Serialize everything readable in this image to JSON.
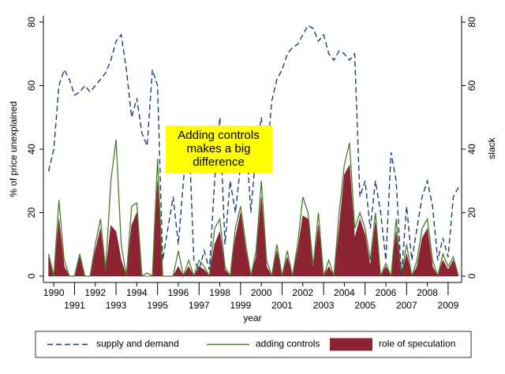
{
  "chart_data": {
    "type": "line",
    "xlabel": "year",
    "ylabel": "% of price unexplained",
    "y2label": "slack",
    "annotation": [
      "Adding controls",
      "makes a big",
      "difference"
    ],
    "x": [
      1989.75,
      1990.0,
      1990.25,
      1990.5,
      1990.75,
      1991.0,
      1991.25,
      1991.5,
      1991.75,
      1992.0,
      1992.25,
      1992.5,
      1992.75,
      1993.0,
      1993.25,
      1993.5,
      1993.75,
      1994.0,
      1994.25,
      1994.5,
      1994.75,
      1995.0,
      1995.25,
      1995.5,
      1995.75,
      1996.0,
      1996.25,
      1996.5,
      1996.75,
      1997.0,
      1997.25,
      1997.5,
      1997.75,
      1998.0,
      1998.25,
      1998.5,
      1998.75,
      1999.0,
      1999.25,
      1999.5,
      1999.75,
      2000.0,
      2000.25,
      2000.5,
      2000.75,
      2001.0,
      2001.25,
      2001.5,
      2001.75,
      2002.0,
      2002.25,
      2002.5,
      2002.75,
      2003.0,
      2003.25,
      2003.5,
      2003.75,
      2004.0,
      2004.25,
      2004.5,
      2004.75,
      2005.0,
      2005.25,
      2005.5,
      2005.75,
      2006.0,
      2006.25,
      2006.5,
      2006.75,
      2007.0,
      2007.25,
      2007.5,
      2007.75,
      2008.0,
      2008.25,
      2008.5,
      2008.75,
      2009.0,
      2009.25,
      2009.5
    ],
    "series": [
      {
        "name": "supply and demand",
        "color": "#1f3f73",
        "style": "dashed",
        "values": [
          33,
          40,
          60,
          65,
          62,
          57,
          58,
          60,
          58,
          60,
          62,
          64,
          68,
          74,
          76,
          65,
          50,
          56,
          45,
          41,
          65,
          60,
          5,
          15,
          25,
          10,
          30,
          47,
          5,
          2,
          8,
          2,
          30,
          50,
          10,
          30,
          20,
          35,
          45,
          20,
          40,
          50,
          35,
          55,
          62,
          65,
          70,
          72,
          73,
          76,
          79,
          78,
          74,
          76,
          70,
          68,
          71,
          70,
          68,
          70,
          25,
          30,
          15,
          30,
          20,
          5,
          39,
          30,
          0,
          22,
          5,
          15,
          25,
          30,
          22,
          5,
          12,
          6,
          25,
          28
        ]
      },
      {
        "name": "adding controls",
        "color": "#4d7a2e",
        "style": "solid",
        "values": [
          7,
          0,
          24,
          5,
          0,
          0,
          7,
          0,
          0,
          10,
          18,
          2,
          30,
          43,
          10,
          0,
          22,
          23,
          0,
          1,
          0,
          37,
          0,
          0,
          0,
          8,
          0,
          5,
          0,
          5,
          3,
          0,
          15,
          18,
          3,
          0,
          15,
          22,
          10,
          0,
          8,
          30,
          5,
          0,
          10,
          0,
          8,
          0,
          10,
          25,
          20,
          3,
          20,
          0,
          5,
          0,
          20,
          35,
          42,
          15,
          20,
          15,
          5,
          20,
          0,
          4,
          0,
          18,
          0,
          10,
          0,
          5,
          15,
          18,
          5,
          0,
          7,
          3,
          6,
          0
        ]
      },
      {
        "name": "role of speculation",
        "color": "#8e2334",
        "style": "area",
        "values": [
          7,
          0,
          18,
          3,
          0,
          0,
          6,
          0,
          0,
          8,
          15,
          1,
          16,
          14,
          5,
          0,
          16,
          20,
          0,
          0,
          0,
          30,
          0,
          0,
          0,
          3,
          0,
          3,
          0,
          3,
          2,
          0,
          10,
          14,
          2,
          0,
          12,
          20,
          8,
          0,
          6,
          25,
          3,
          0,
          8,
          0,
          6,
          0,
          8,
          19,
          18,
          2,
          16,
          0,
          3,
          0,
          15,
          32,
          35,
          12,
          18,
          13,
          3,
          17,
          0,
          3,
          0,
          14,
          0,
          7,
          0,
          3,
          12,
          15,
          3,
          0,
          5,
          2,
          5,
          0
        ]
      }
    ],
    "xlim": [
      1989.5,
      2009.65
    ],
    "xticks": [
      1990,
      1991,
      1992,
      1993,
      1994,
      1995,
      1996,
      1997,
      1998,
      1999,
      2000,
      2001,
      2002,
      2003,
      2004,
      2005,
      2006,
      2007,
      2008,
      2009
    ],
    "ylim": [
      -2,
      82
    ],
    "yticks": [
      0,
      20,
      40,
      60,
      80
    ],
    "y2lim": [
      -2,
      82
    ],
    "y2ticks": [
      0,
      20,
      40,
      60,
      80
    ],
    "grid": false,
    "legend": "bottom"
  }
}
